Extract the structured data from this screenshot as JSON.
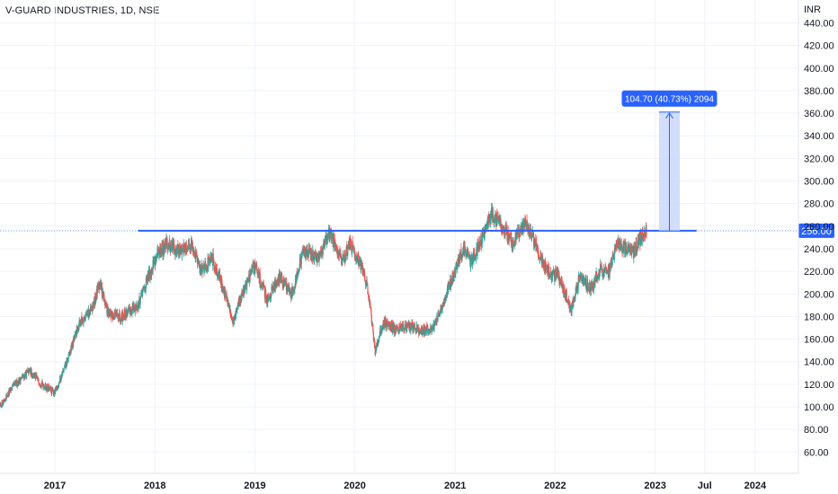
{
  "chart_data": {
    "type": "candlestick",
    "title": "V-GUARD INDUSTRIES, 1D, NSE",
    "currency": "INR",
    "y_range": [
      40,
      460
    ],
    "y_ticks": [
      "60.00",
      "80.00",
      "100.00",
      "120.00",
      "140.00",
      "160.00",
      "180.00",
      "200.00",
      "220.00",
      "240.00",
      "260.00",
      "280.00",
      "300.00",
      "320.00",
      "340.00",
      "360.00",
      "380.00",
      "400.00",
      "420.00",
      "440.00"
    ],
    "x_ticks": [
      {
        "label": "2017",
        "date": "2017-01-01"
      },
      {
        "label": "2018",
        "date": "2018-01-01"
      },
      {
        "label": "2019",
        "date": "2019-01-01"
      },
      {
        "label": "2020",
        "date": "2020-01-01"
      },
      {
        "label": "2021",
        "date": "2021-01-01"
      },
      {
        "label": "2022",
        "date": "2022-01-01"
      },
      {
        "label": "2023",
        "date": "2023-01-01"
      },
      {
        "label": "Jul",
        "date": "2023-07-01"
      },
      {
        "label": "2024",
        "date": "2024-01-01"
      }
    ],
    "series": [
      {
        "date_range": [
          "2016-06-01",
          "2022-12-01"
        ],
        "approx_close_path": [
          [
            "2016-06-01",
            95
          ],
          [
            "2016-08-01",
            118
          ],
          [
            "2016-10-01",
            132
          ],
          [
            "2016-11-15",
            120
          ],
          [
            "2017-01-01",
            112
          ],
          [
            "2017-02-15",
            140
          ],
          [
            "2017-04-01",
            175
          ],
          [
            "2017-05-15",
            185
          ],
          [
            "2017-06-15",
            210
          ],
          [
            "2017-07-15",
            182
          ],
          [
            "2017-09-01",
            180
          ],
          [
            "2017-11-01",
            190
          ],
          [
            "2018-01-01",
            230
          ],
          [
            "2018-02-15",
            245
          ],
          [
            "2018-04-01",
            238
          ],
          [
            "2018-05-15",
            245
          ],
          [
            "2018-06-15",
            222
          ],
          [
            "2018-08-01",
            230
          ],
          [
            "2018-09-01",
            210
          ],
          [
            "2018-10-15",
            175
          ],
          [
            "2018-11-15",
            200
          ],
          [
            "2019-01-01",
            225
          ],
          [
            "2019-02-15",
            195
          ],
          [
            "2019-04-01",
            215
          ],
          [
            "2019-05-15",
            200
          ],
          [
            "2019-07-01",
            240
          ],
          [
            "2019-08-15",
            230
          ],
          [
            "2019-10-01",
            255
          ],
          [
            "2019-11-15",
            228
          ],
          [
            "2019-12-15",
            245
          ],
          [
            "2020-01-15",
            230
          ],
          [
            "2020-02-15",
            210
          ],
          [
            "2020-03-15",
            150
          ],
          [
            "2020-04-15",
            175
          ],
          [
            "2020-06-01",
            168
          ],
          [
            "2020-07-15",
            172
          ],
          [
            "2020-09-01",
            167
          ],
          [
            "2020-10-15",
            170
          ],
          [
            "2020-11-15",
            190
          ],
          [
            "2021-01-01",
            220
          ],
          [
            "2021-02-01",
            240
          ],
          [
            "2021-03-01",
            228
          ],
          [
            "2021-04-01",
            245
          ],
          [
            "2021-05-15",
            270
          ],
          [
            "2021-06-15",
            262
          ],
          [
            "2021-08-01",
            245
          ],
          [
            "2021-09-15",
            262
          ],
          [
            "2021-10-15",
            248
          ],
          [
            "2021-11-15",
            228
          ],
          [
            "2021-12-15",
            218
          ],
          [
            "2022-01-15",
            215
          ],
          [
            "2022-02-15",
            195
          ],
          [
            "2022-03-01",
            185
          ],
          [
            "2022-04-01",
            215
          ],
          [
            "2022-05-15",
            205
          ],
          [
            "2022-06-15",
            222
          ],
          [
            "2022-07-15",
            218
          ],
          [
            "2022-08-15",
            245
          ],
          [
            "2022-09-15",
            240
          ],
          [
            "2022-10-15",
            238
          ],
          [
            "2022-11-15",
            252
          ],
          [
            "2022-12-01",
            256
          ]
        ]
      }
    ],
    "annotations": {
      "horizontal_line": {
        "value": 256,
        "from_date": "2017-11-01",
        "to_date": "2023-06-01"
      },
      "current_price_label": "256.00",
      "measure": {
        "label": "104.70 (40.73%) 2094",
        "from_value": 256,
        "to_value": 361,
        "from_date": "2023-01-15",
        "to_date": "2023-04-01"
      }
    },
    "colors": {
      "up": "#26a69a",
      "down": "#ef5350",
      "line": "#2962ff",
      "measure_fill": "#c8d6fb",
      "measure_label": "#2962ff",
      "price_label": "#2962ff"
    }
  }
}
